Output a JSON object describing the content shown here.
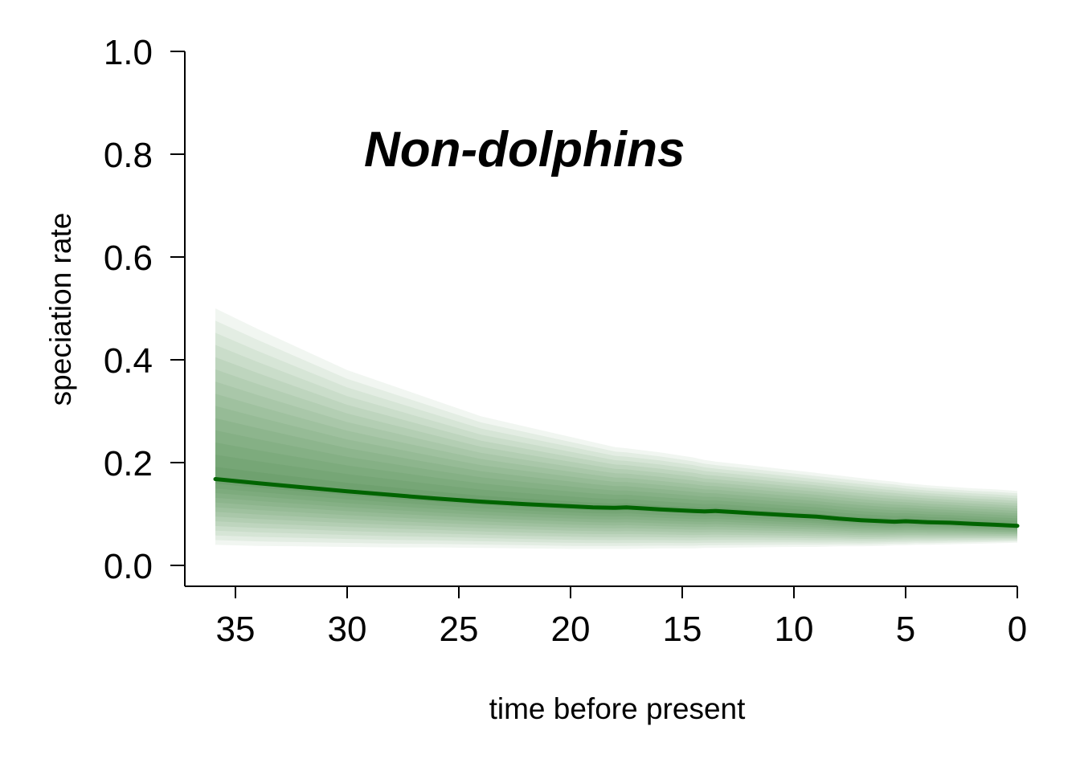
{
  "chart_data": {
    "type": "line",
    "title": "Non-dolphins",
    "xlabel": "time before present",
    "ylabel": "speciation rate",
    "xlim": [
      36,
      0
    ],
    "ylim": [
      0.0,
      1.0
    ],
    "x_ticks": [
      "35",
      "30",
      "25",
      "20",
      "15",
      "10",
      "5",
      "0"
    ],
    "y_ticks": [
      "0.0",
      "0.2",
      "0.4",
      "0.6",
      "0.8",
      "1.0"
    ],
    "grid": false,
    "legend": "none",
    "line_color": "#006400",
    "band_color": "#006400",
    "series": [
      {
        "x": [
          35.9,
          34,
          32,
          30,
          28,
          26,
          24,
          22,
          20,
          19,
          18,
          17.5,
          16,
          14.5,
          14,
          13.5,
          12,
          10,
          9,
          8,
          7,
          6,
          5.5,
          5,
          4.5,
          4,
          3,
          2,
          1,
          0
        ],
        "y": [
          0.168,
          0.16,
          0.152,
          0.144,
          0.137,
          0.13,
          0.124,
          0.119,
          0.115,
          0.113,
          0.112,
          0.113,
          0.109,
          0.106,
          0.105,
          0.106,
          0.102,
          0.097,
          0.095,
          0.091,
          0.088,
          0.086,
          0.085,
          0.086,
          0.085,
          0.084,
          0.083,
          0.081,
          0.079,
          0.077
        ],
        "band_upper": [
          0.5,
          0.46,
          0.42,
          0.38,
          0.35,
          0.32,
          0.29,
          0.27,
          0.25,
          0.24,
          0.23,
          0.228,
          0.22,
          0.21,
          0.205,
          0.202,
          0.195,
          0.185,
          0.18,
          0.175,
          0.17,
          0.165,
          0.163,
          0.16,
          0.158,
          0.156,
          0.153,
          0.15,
          0.148,
          0.145
        ],
        "band_lower": [
          0.04,
          0.038,
          0.037,
          0.036,
          0.035,
          0.035,
          0.034,
          0.033,
          0.032,
          0.032,
          0.032,
          0.032,
          0.033,
          0.033,
          0.034,
          0.034,
          0.035,
          0.036,
          0.036,
          0.037,
          0.037,
          0.038,
          0.039,
          0.039,
          0.04,
          0.04,
          0.041,
          0.042,
          0.043,
          0.044
        ]
      }
    ]
  }
}
